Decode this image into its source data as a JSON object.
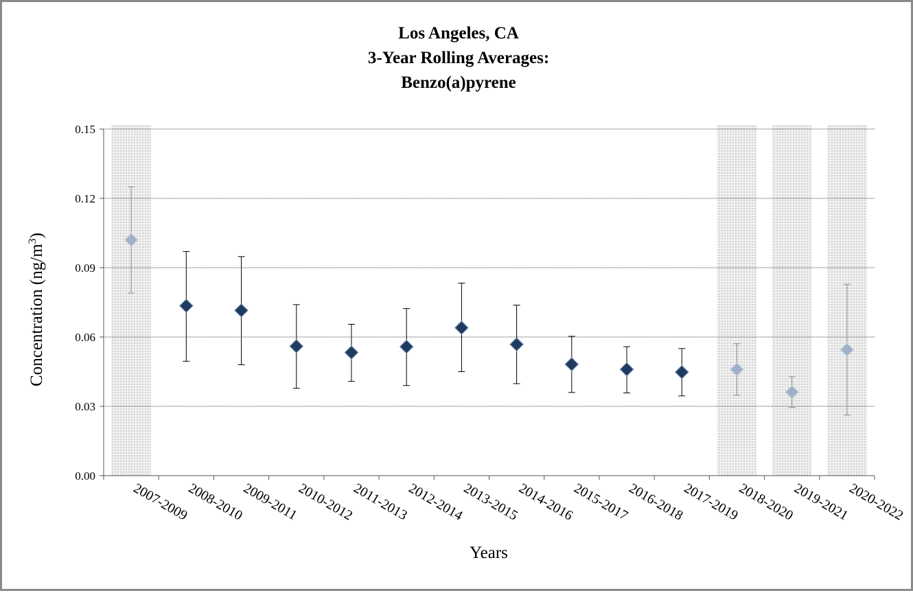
{
  "chart_data": {
    "type": "scatter",
    "title_lines": [
      "Los Angeles, CA",
      "3-Year Rolling Averages:",
      "Benzo(a)pyrene"
    ],
    "xlabel": "Years",
    "ylabel_main": "Concentration (ng/m",
    "ylabel_sup": "3",
    "ylabel_end": ")",
    "ylim": [
      0,
      0.15
    ],
    "yticks": [
      "0.00",
      "0.03",
      "0.06",
      "0.09",
      "0.12",
      "0.15"
    ],
    "ytick_values": [
      0,
      0.03,
      0.06,
      0.09,
      0.12,
      0.15
    ],
    "grid": true,
    "categories": [
      "2007-2009",
      "2008-2010",
      "2009-2011",
      "2010-2012",
      "2011-2013",
      "2012-2014",
      "2013-2015",
      "2014-2016",
      "2015-2017",
      "2016-2018",
      "2017-2019",
      "2018-2020",
      "2019-2021",
      "2020-2022"
    ],
    "values": [
      0.102,
      0.0735,
      0.0715,
      0.056,
      0.0533,
      0.0558,
      0.064,
      0.0568,
      0.0482,
      0.046,
      0.0448,
      0.046,
      0.0362,
      0.0545
    ],
    "error_low": [
      0.079,
      0.0495,
      0.048,
      0.0378,
      0.0408,
      0.039,
      0.045,
      0.0398,
      0.036,
      0.0358,
      0.0345,
      0.0348,
      0.0295,
      0.0262
    ],
    "error_high": [
      0.125,
      0.097,
      0.0948,
      0.074,
      0.0655,
      0.0723,
      0.0833,
      0.0738,
      0.0603,
      0.0558,
      0.055,
      0.0571,
      0.0428,
      0.0828
    ],
    "shaded_categories": [
      "2007-2009",
      "2018-2020",
      "2019-2021",
      "2020-2022"
    ],
    "colors": {
      "marker": "#1f3a60",
      "marker_edge": "#6f86a8",
      "shaded_marker": "#9fb0c8",
      "shade": "#e6e6e6",
      "grid": "#444444"
    }
  }
}
